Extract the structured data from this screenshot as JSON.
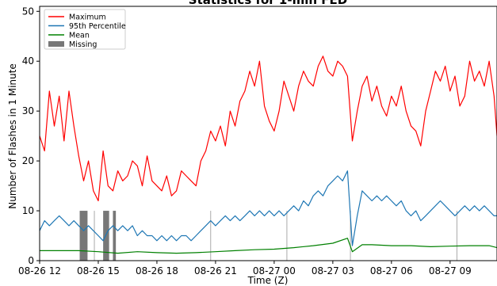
{
  "chart_data": {
    "type": "line",
    "title": "Statistics for 1-min FED",
    "xlabel": "Time (Z)",
    "ylabel": "Number of Flashes in 1 Minute",
    "x_unit": "hours after 08-26 12:00 Z",
    "xlim": [
      0,
      23.4
    ],
    "ylim": [
      0,
      51
    ],
    "xticks": [
      0,
      3,
      6,
      9,
      12,
      15,
      18,
      21
    ],
    "xtick_labels": [
      "08-26 12",
      "08-26 15",
      "08-26 18",
      "08-26 21",
      "08-27 00",
      "08-27 03",
      "08-27 06",
      "08-27 09"
    ],
    "yticks": [
      0,
      10,
      20,
      30,
      40,
      50
    ],
    "ytick_labels": [
      "0",
      "10",
      "20",
      "30",
      "40",
      "50"
    ],
    "legend_position": "top-left",
    "series": [
      {
        "name": "Maximum",
        "color": "#ff0000",
        "x": [
          0,
          0.25,
          0.5,
          0.75,
          1.0,
          1.25,
          1.5,
          1.75,
          2.0,
          2.25,
          2.5,
          2.75,
          3.0,
          3.25,
          3.5,
          3.75,
          4.0,
          4.25,
          4.5,
          4.75,
          5.0,
          5.25,
          5.5,
          5.75,
          6.0,
          6.25,
          6.5,
          6.75,
          7.0,
          7.25,
          7.5,
          7.75,
          8.0,
          8.25,
          8.5,
          8.75,
          9.0,
          9.25,
          9.5,
          9.75,
          10.0,
          10.25,
          10.5,
          10.75,
          11.0,
          11.25,
          11.5,
          11.75,
          12.0,
          12.25,
          12.5,
          12.75,
          13.0,
          13.25,
          13.5,
          13.75,
          14.0,
          14.25,
          14.5,
          14.75,
          15.0,
          15.25,
          15.5,
          15.75,
          16.0,
          16.25,
          16.5,
          16.75,
          17.0,
          17.25,
          17.5,
          17.75,
          18.0,
          18.25,
          18.5,
          18.75,
          19.0,
          19.25,
          19.5,
          19.75,
          20.0,
          20.25,
          20.5,
          20.75,
          21.0,
          21.25,
          21.5,
          21.75,
          22.0,
          22.25,
          22.5,
          22.75,
          23.0,
          23.25,
          23.4
        ],
        "y": [
          25,
          22,
          34,
          27,
          33,
          24,
          34,
          27,
          21,
          16,
          20,
          14,
          12,
          22,
          15,
          14,
          18,
          16,
          17,
          20,
          19,
          15,
          21,
          16,
          15,
          14,
          17,
          13,
          14,
          18,
          17,
          16,
          15,
          20,
          22,
          26,
          24,
          27,
          23,
          30,
          27,
          32,
          34,
          38,
          35,
          40,
          31,
          28,
          26,
          30,
          36,
          33,
          30,
          35,
          38,
          36,
          35,
          39,
          41,
          38,
          37,
          40,
          39,
          37,
          24,
          30,
          35,
          37,
          32,
          35,
          31,
          29,
          33,
          31,
          35,
          30,
          27,
          26,
          23,
          30,
          34,
          38,
          36,
          39,
          34,
          37,
          31,
          33,
          40,
          36,
          38,
          35,
          40,
          33,
          25
        ]
      },
      {
        "name": "95th Percentile",
        "color": "#1f77b4",
        "x": [
          0,
          0.25,
          0.5,
          0.75,
          1.0,
          1.25,
          1.5,
          1.75,
          2.0,
          2.25,
          2.5,
          2.75,
          3.0,
          3.25,
          3.5,
          3.75,
          4.0,
          4.25,
          4.5,
          4.75,
          5.0,
          5.25,
          5.5,
          5.75,
          6.0,
          6.25,
          6.5,
          6.75,
          7.0,
          7.25,
          7.5,
          7.75,
          8.0,
          8.25,
          8.5,
          8.75,
          9.0,
          9.25,
          9.5,
          9.75,
          10.0,
          10.25,
          10.5,
          10.75,
          11.0,
          11.25,
          11.5,
          11.75,
          12.0,
          12.25,
          12.5,
          12.75,
          13.0,
          13.25,
          13.5,
          13.75,
          14.0,
          14.25,
          14.5,
          14.75,
          15.0,
          15.25,
          15.5,
          15.75,
          16.0,
          16.25,
          16.5,
          16.75,
          17.0,
          17.25,
          17.5,
          17.75,
          18.0,
          18.25,
          18.5,
          18.75,
          19.0,
          19.25,
          19.5,
          19.75,
          20.0,
          20.25,
          20.5,
          20.75,
          21.0,
          21.25,
          21.5,
          21.75,
          22.0,
          22.25,
          22.5,
          22.75,
          23.0,
          23.25,
          23.4
        ],
        "y": [
          6,
          8,
          7,
          8,
          9,
          8,
          7,
          8,
          7,
          6,
          7,
          6,
          5,
          4,
          6,
          7,
          6,
          7,
          6,
          7,
          5,
          6,
          5,
          5,
          4,
          5,
          4,
          5,
          4,
          5,
          5,
          4,
          5,
          6,
          7,
          8,
          7,
          8,
          9,
          8,
          9,
          8,
          9,
          10,
          9,
          10,
          9,
          10,
          9,
          10,
          9,
          10,
          11,
          10,
          12,
          11,
          13,
          14,
          13,
          15,
          16,
          17,
          16,
          18,
          3,
          9,
          14,
          13,
          12,
          13,
          12,
          13,
          12,
          11,
          12,
          10,
          9,
          10,
          8,
          9,
          10,
          11,
          12,
          11,
          10,
          9,
          10,
          11,
          10,
          11,
          10,
          11,
          10,
          9,
          9
        ]
      },
      {
        "name": "Mean",
        "color": "#008000",
        "x": [
          0,
          1.0,
          2.0,
          3.0,
          4.0,
          5.0,
          6.0,
          7.0,
          8.0,
          9.0,
          10.0,
          11.0,
          12.0,
          13.0,
          14.0,
          15.0,
          15.75,
          16.0,
          16.5,
          17.0,
          18.0,
          19.0,
          20.0,
          21.0,
          22.0,
          23.0,
          23.4
        ],
        "y": [
          2,
          2,
          2,
          1.8,
          1.5,
          1.8,
          1.6,
          1.5,
          1.6,
          1.8,
          2.0,
          2.2,
          2.3,
          2.6,
          3.0,
          3.5,
          4.5,
          1.8,
          3.2,
          3.2,
          3.0,
          3.0,
          2.8,
          2.9,
          3.0,
          3.0,
          2.6
        ]
      }
    ],
    "missing": {
      "name": "Missing",
      "color": "#777777",
      "intervals": [
        [
          2.05,
          2.45
        ],
        [
          3.25,
          3.55
        ],
        [
          3.75,
          3.9
        ]
      ]
    },
    "gray_vlines": [
      2.8,
      3.55,
      8.75,
      12.65,
      15.9,
      21.35
    ]
  }
}
